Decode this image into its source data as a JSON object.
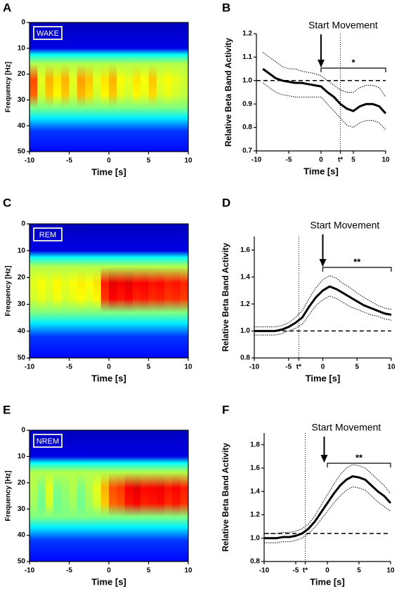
{
  "chart_data": [
    {
      "type": "heatmap",
      "panel_label": "A",
      "label": "WAKE",
      "x_label": "Time [s]",
      "y_label": "Frequency [Hz]",
      "xlim": [
        -10,
        10
      ],
      "ylim": [
        0,
        50
      ],
      "xticks": [
        -10,
        -5,
        0,
        5,
        10
      ],
      "yticks": [
        0,
        10,
        20,
        30,
        40,
        50
      ],
      "x": [
        -9.5,
        -8.5,
        -7.5,
        -6.5,
        -5.5,
        -4.5,
        -3.5,
        -2.5,
        -1.5,
        -0.5,
        0.5,
        1.5,
        2.5,
        3.5,
        4.5,
        5.5,
        6.5,
        7.5,
        8.5,
        9.5
      ],
      "values": [
        0.8,
        0.6,
        0.7,
        0.65,
        0.7,
        0.6,
        0.72,
        0.68,
        0.6,
        0.65,
        0.7,
        0.62,
        0.6,
        0.65,
        0.62,
        0.68,
        0.6,
        0.62,
        0.6,
        0.58
      ]
    },
    {
      "type": "line",
      "panel_label": "B",
      "x_label": "Time [s]",
      "y_label": "Relative Beta Band Activity",
      "xlim": [
        -10,
        10
      ],
      "ylim": [
        0.7,
        1.2
      ],
      "xticks": [
        -10,
        -5,
        0,
        {
          "value": 3,
          "label": "t*"
        },
        5,
        10
      ],
      "yticks": [
        0.7,
        0.8,
        0.9,
        {
          "value": 1,
          "label": "1.0"
        },
        1.1,
        1.2
      ],
      "reference_line": 1,
      "annotation": {
        "text": "Start Movement",
        "x": 0
      },
      "significance": {
        "start": 0,
        "end": 10,
        "label": "*"
      },
      "x": [
        -9,
        -8,
        -7,
        -6,
        -5,
        -4,
        -3,
        -2,
        -1,
        0,
        1,
        2,
        3,
        4,
        5,
        6,
        7,
        8,
        9,
        10
      ],
      "series": [
        {
          "line_width": 3,
          "line_style": "solid",
          "values": [
            1.05,
            1.03,
            1.01,
            1.0,
            0.995,
            0.99,
            0.99,
            0.985,
            0.98,
            0.975,
            0.95,
            0.93,
            0.9,
            0.88,
            0.87,
            0.89,
            0.9,
            0.9,
            0.89,
            0.86
          ]
        },
        {
          "line_width": 1,
          "line_style": "dotted",
          "values": [
            1.12,
            1.1,
            1.08,
            1.06,
            1.05,
            1.05,
            1.04,
            1.035,
            1.03,
            1.02,
            1.0,
            0.98,
            0.96,
            0.95,
            0.95,
            0.97,
            0.98,
            0.98,
            0.97,
            0.93
          ]
        },
        {
          "line_width": 1,
          "line_style": "dotted",
          "values": [
            0.99,
            0.97,
            0.95,
            0.94,
            0.935,
            0.93,
            0.93,
            0.93,
            0.93,
            0.93,
            0.9,
            0.87,
            0.84,
            0.81,
            0.8,
            0.82,
            0.83,
            0.83,
            0.82,
            0.79
          ]
        }
      ]
    },
    {
      "type": "heatmap",
      "panel_label": "C",
      "label": "REM",
      "x_label": "Time [s]",
      "y_label": "Frequency [Hz]",
      "xlim": [
        -10,
        10
      ],
      "ylim": [
        0,
        50
      ],
      "xticks": [
        -10,
        -5,
        0,
        5,
        10
      ],
      "yticks": [
        0,
        10,
        20,
        30,
        40,
        50
      ],
      "x": [
        -9.5,
        -8.5,
        -7.5,
        -6.5,
        -5.5,
        -4.5,
        -3.5,
        -2.5,
        -1.5,
        -0.5,
        0.5,
        1.5,
        2.5,
        3.5,
        4.5,
        5.5,
        6.5,
        7.5,
        8.5,
        9.5
      ],
      "values": [
        0.6,
        0.62,
        0.6,
        0.63,
        0.6,
        0.62,
        0.64,
        0.62,
        0.65,
        0.85,
        0.9,
        0.88,
        0.9,
        0.87,
        0.88,
        0.86,
        0.87,
        0.85,
        0.86,
        0.84
      ]
    },
    {
      "type": "line",
      "panel_label": "D",
      "x_label": "Time [s]",
      "y_label": "Relative Beta Band Activity",
      "xlim": [
        -10,
        10
      ],
      "ylim": [
        0.8,
        1.7
      ],
      "xticks": [
        -10,
        -5,
        {
          "value": -3.5,
          "label": "t*"
        },
        0,
        5,
        10
      ],
      "yticks": [
        0.8,
        {
          "value": 1,
          "label": "1.0"
        },
        1.2,
        1.4,
        1.6
      ],
      "reference_line": 1,
      "annotation": {
        "text": "Start Movement",
        "x": 0
      },
      "significance": {
        "start": 0,
        "end": 10,
        "label": "**"
      },
      "x": [
        -10,
        -9,
        -8,
        -7,
        -6,
        -5,
        -4,
        -3,
        -2,
        -1,
        0,
        1,
        2,
        3,
        4,
        5,
        6,
        7,
        8,
        9,
        10
      ],
      "series": [
        {
          "line_width": 3,
          "line_style": "solid",
          "values": [
            1.0,
            1.0,
            1.0,
            1.0,
            1.01,
            1.03,
            1.06,
            1.1,
            1.18,
            1.25,
            1.3,
            1.33,
            1.31,
            1.28,
            1.25,
            1.22,
            1.19,
            1.17,
            1.15,
            1.13,
            1.12
          ]
        },
        {
          "line_width": 1,
          "line_style": "dotted",
          "values": [
            1.03,
            1.03,
            1.03,
            1.03,
            1.04,
            1.06,
            1.1,
            1.15,
            1.24,
            1.32,
            1.38,
            1.41,
            1.39,
            1.35,
            1.32,
            1.28,
            1.25,
            1.22,
            1.19,
            1.17,
            1.16
          ]
        },
        {
          "line_width": 1,
          "line_style": "dotted",
          "values": [
            0.97,
            0.97,
            0.97,
            0.97,
            0.98,
            1.0,
            1.02,
            1.05,
            1.12,
            1.19,
            1.23,
            1.26,
            1.24,
            1.21,
            1.18,
            1.16,
            1.14,
            1.12,
            1.11,
            1.09,
            1.08
          ]
        }
      ]
    },
    {
      "type": "heatmap",
      "panel_label": "E",
      "label": "NREM",
      "x_label": "Time [s]",
      "y_label": "Frequency [Hz]",
      "xlim": [
        -10,
        10
      ],
      "ylim": [
        0,
        50
      ],
      "xticks": [
        -10,
        -5,
        0,
        5,
        10
      ],
      "yticks": [
        0,
        10,
        20,
        30,
        40,
        50
      ],
      "x": [
        -9.5,
        -8.5,
        -7.5,
        -6.5,
        -5.5,
        -4.5,
        -3.5,
        -2.5,
        -1.5,
        -0.5,
        0.5,
        1.5,
        2.5,
        3.5,
        4.5,
        5.5,
        6.5,
        7.5,
        8.5,
        9.5
      ],
      "values": [
        0.55,
        0.5,
        0.6,
        0.5,
        0.52,
        0.55,
        0.5,
        0.55,
        0.6,
        0.7,
        0.8,
        0.82,
        0.88,
        0.9,
        0.87,
        0.88,
        0.89,
        0.86,
        0.88,
        0.85
      ]
    },
    {
      "type": "line",
      "panel_label": "F",
      "x_label": "Time [s]",
      "y_label": "Relative Beta Band Activity",
      "xlim": [
        -10,
        10
      ],
      "ylim": [
        0.8,
        1.9
      ],
      "xticks": [
        -10,
        -5,
        {
          "value": -3.5,
          "label": "t*"
        },
        0,
        5,
        10
      ],
      "yticks": [
        0.8,
        {
          "value": 1,
          "label": "1.0"
        },
        1.2,
        1.4,
        1.6,
        1.8
      ],
      "reference_line": 1.04,
      "annotation": {
        "text": "Start Movement",
        "x": -0.5
      },
      "significance": {
        "start": 0,
        "end": 10,
        "label": "**"
      },
      "x": [
        -10,
        -9,
        -8,
        -7,
        -6,
        -5,
        -4,
        -3,
        -2,
        -1,
        0,
        1,
        2,
        3,
        4,
        5,
        6,
        7,
        8,
        9,
        10
      ],
      "series": [
        {
          "line_width": 3,
          "line_style": "solid",
          "values": [
            1.0,
            1.0,
            1.0,
            1.01,
            1.01,
            1.02,
            1.04,
            1.08,
            1.14,
            1.22,
            1.3,
            1.38,
            1.45,
            1.5,
            1.53,
            1.52,
            1.5,
            1.45,
            1.4,
            1.36,
            1.3
          ]
        },
        {
          "line_width": 1,
          "line_style": "dotted",
          "values": [
            1.04,
            1.04,
            1.04,
            1.05,
            1.05,
            1.06,
            1.08,
            1.12,
            1.19,
            1.28,
            1.37,
            1.46,
            1.54,
            1.6,
            1.63,
            1.62,
            1.6,
            1.55,
            1.5,
            1.45,
            1.38
          ]
        },
        {
          "line_width": 1,
          "line_style": "dotted",
          "values": [
            0.96,
            0.96,
            0.96,
            0.97,
            0.97,
            0.98,
            1.0,
            1.04,
            1.09,
            1.16,
            1.23,
            1.3,
            1.36,
            1.41,
            1.44,
            1.43,
            1.41,
            1.36,
            1.31,
            1.27,
            1.23
          ]
        }
      ]
    }
  ]
}
